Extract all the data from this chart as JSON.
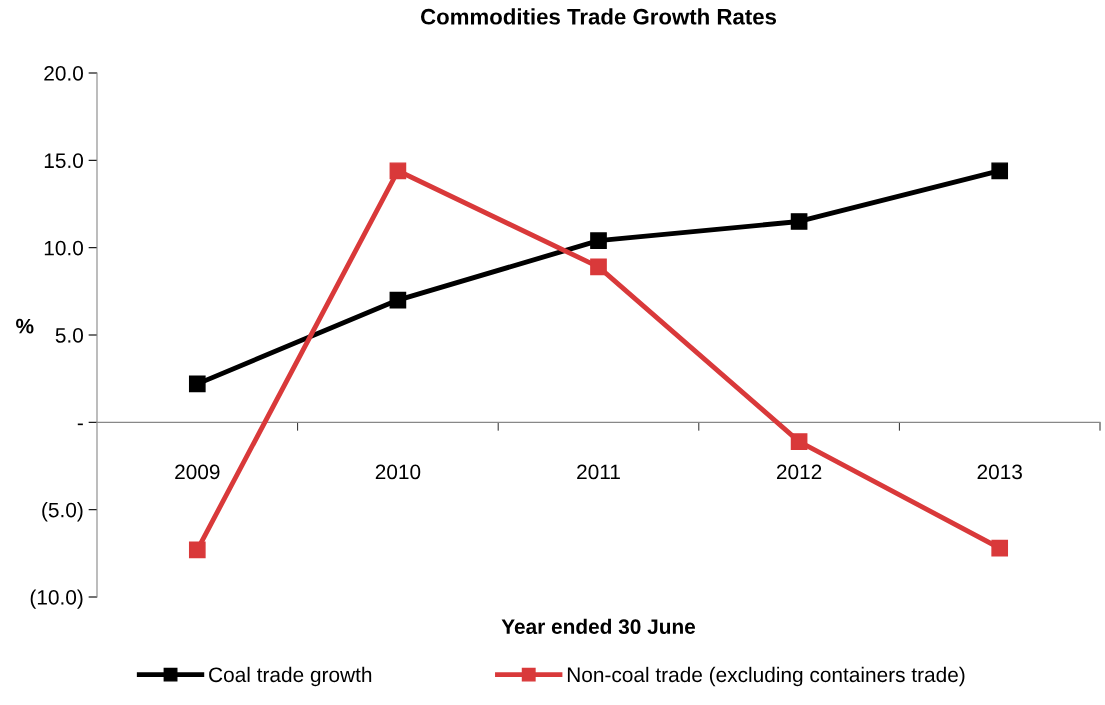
{
  "chart_data": {
    "type": "line",
    "title": "Commodities Trade Growth Rates",
    "xlabel": "Year ended 30 June",
    "ylabel": "%",
    "categories": [
      "2009",
      "2010",
      "2011",
      "2012",
      "2013"
    ],
    "series": [
      {
        "name": "Coal trade growth",
        "color": "#000000",
        "values": [
          2.2,
          7.0,
          10.4,
          11.5,
          14.4
        ]
      },
      {
        "name": "Non-coal trade (excluding containers trade)",
        "color": "#d9393a",
        "values": [
          -7.3,
          14.4,
          8.9,
          -1.1,
          -7.2
        ]
      }
    ],
    "ylim": [
      -10,
      20
    ],
    "yticks": [
      {
        "value": -10,
        "label": "(10.0)"
      },
      {
        "value": -5,
        "label": "(5.0)"
      },
      {
        "value": 0,
        "label": "-"
      },
      {
        "value": 5,
        "label": "5.0"
      },
      {
        "value": 10,
        "label": "10.0"
      },
      {
        "value": 15,
        "label": "15.0"
      },
      {
        "value": 20,
        "label": "20.0"
      }
    ],
    "marker": "square",
    "line_style": "solid",
    "legend": "bottom",
    "grid": false
  }
}
